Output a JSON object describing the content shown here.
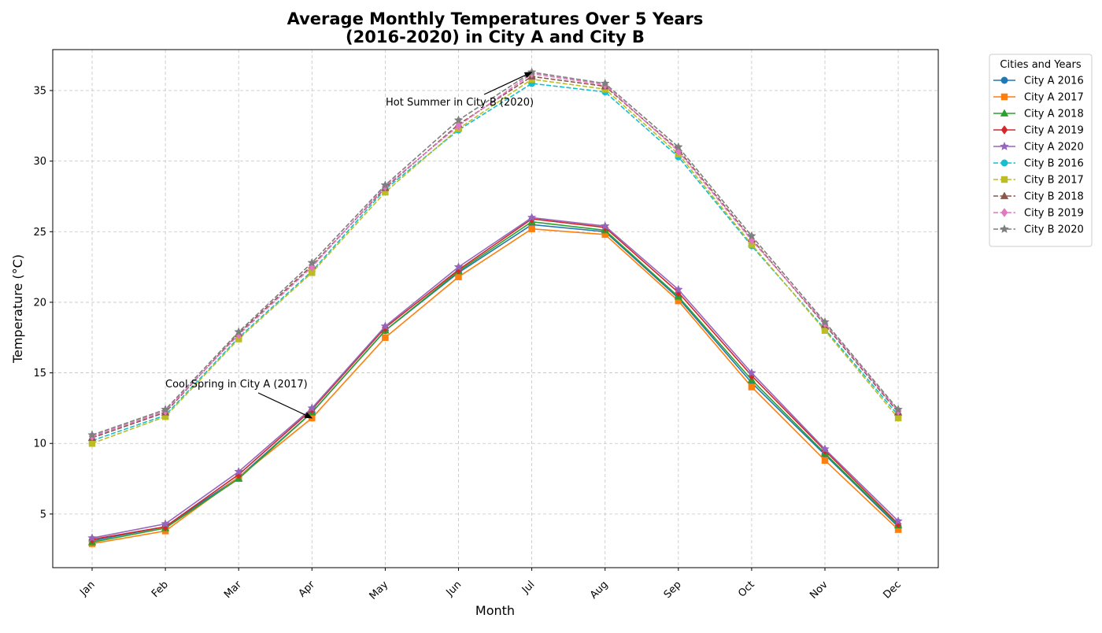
{
  "chart_data": {
    "type": "line",
    "title_line1": "Average Monthly Temperatures Over 5 Years",
    "title_line2": "(2016-2020) in City A and City B",
    "xlabel": "Month",
    "ylabel": "Temperature (°C)",
    "categories": [
      "Jan",
      "Feb",
      "Mar",
      "Apr",
      "May",
      "Jun",
      "Jul",
      "Aug",
      "Sep",
      "Oct",
      "Nov",
      "Dec"
    ],
    "ylim": [
      1.2,
      37.9
    ],
    "yticks": [
      5,
      10,
      15,
      20,
      25,
      30,
      35
    ],
    "grid": true,
    "legend": {
      "title": "Cities and Years",
      "placement": "outside-right"
    },
    "series": [
      {
        "name": "City A 2016",
        "color": "#1f77b4",
        "marker": "circle",
        "dashed": false,
        "values": [
          3.1,
          4.1,
          7.6,
          12.2,
          18.0,
          22.1,
          25.5,
          25.0,
          20.3,
          14.3,
          9.2,
          4.1
        ]
      },
      {
        "name": "City A 2017",
        "color": "#ff7f0e",
        "marker": "square",
        "dashed": false,
        "values": [
          2.9,
          3.8,
          7.6,
          11.8,
          17.5,
          21.8,
          25.2,
          24.8,
          20.1,
          14.0,
          8.8,
          3.9
        ]
      },
      {
        "name": "City A 2018",
        "color": "#2ca02c",
        "marker": "triangle",
        "dashed": false,
        "values": [
          3.0,
          4.0,
          7.5,
          12.2,
          18.0,
          22.2,
          25.7,
          25.1,
          20.4,
          14.5,
          9.3,
          4.2
        ]
      },
      {
        "name": "City A 2019",
        "color": "#d62728",
        "marker": "diamond",
        "dashed": false,
        "values": [
          3.2,
          4.1,
          7.8,
          12.4,
          18.2,
          22.3,
          25.9,
          25.3,
          20.7,
          14.8,
          9.5,
          4.3
        ]
      },
      {
        "name": "City A 2020",
        "color": "#9467bd",
        "marker": "star",
        "dashed": false,
        "values": [
          3.3,
          4.3,
          8.0,
          12.5,
          18.3,
          22.5,
          26.0,
          25.4,
          20.9,
          15.0,
          9.6,
          4.5
        ]
      },
      {
        "name": "City B 2016",
        "color": "#17becf",
        "marker": "circle",
        "dashed": true,
        "values": [
          10.2,
          12.0,
          17.5,
          22.2,
          28.0,
          32.2,
          35.5,
          34.9,
          30.3,
          24.0,
          18.1,
          12.0
        ]
      },
      {
        "name": "City B 2017",
        "color": "#bcbd22",
        "marker": "square",
        "dashed": true,
        "values": [
          10.0,
          11.9,
          17.4,
          22.1,
          27.8,
          32.3,
          35.8,
          35.1,
          30.5,
          24.1,
          18.0,
          11.8
        ]
      },
      {
        "name": "City B 2018",
        "color": "#8c564b",
        "marker": "triangle",
        "dashed": true,
        "values": [
          10.4,
          12.2,
          17.8,
          22.6,
          28.1,
          32.6,
          36.0,
          35.3,
          30.8,
          24.5,
          18.4,
          12.2
        ]
      },
      {
        "name": "City B 2019",
        "color": "#e377c2",
        "marker": "diamond",
        "dashed": true,
        "values": [
          10.5,
          12.3,
          17.7,
          22.5,
          28.2,
          32.5,
          36.2,
          35.4,
          30.7,
          24.4,
          18.5,
          12.3
        ]
      },
      {
        "name": "City B 2020",
        "color": "#7f7f7f",
        "marker": "star",
        "dashed": true,
        "values": [
          10.6,
          12.4,
          17.9,
          22.8,
          28.3,
          32.9,
          36.3,
          35.5,
          31.0,
          24.7,
          18.6,
          12.4
        ]
      }
    ],
    "annotations": [
      {
        "text": "Hot Summer in City B (2020)",
        "point": {
          "x": "Jul",
          "y": 36.3
        }
      },
      {
        "text": "Cool Spring in City A (2017)",
        "point": {
          "x": "Apr",
          "y": 11.8
        }
      }
    ]
  }
}
